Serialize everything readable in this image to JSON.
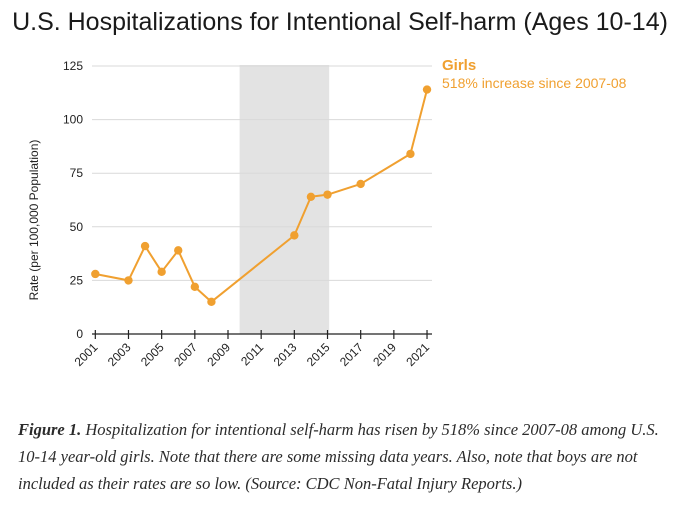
{
  "chart_data": {
    "type": "line",
    "title": "U.S. Hospitalizations for Intentional Self-harm (Ages 10-14)",
    "ylabel": "Rate (per 100,000 Population)",
    "xlabel": "",
    "xlim": [
      2000.8,
      2021.3
    ],
    "ylim": [
      0,
      125
    ],
    "y_ticks": [
      "0",
      "25",
      "50",
      "75",
      "100",
      "125"
    ],
    "x_tick_years": [
      2001,
      2003,
      2005,
      2007,
      2009,
      2011,
      2013,
      2015,
      2017,
      2019,
      2021
    ],
    "x_tick_labels": [
      "2001",
      "2003",
      "2005",
      "2007",
      "2009",
      "2011",
      "2013",
      "2015",
      "2017",
      "2019",
      "2021"
    ],
    "shaded_region": [
      2009.7,
      2015.1
    ],
    "grid": "horizontal",
    "series": [
      {
        "name": "Girls",
        "color": "#F0A030",
        "annotation": "518% increase since 2007-08",
        "x": [
          2001,
          2003,
          2004,
          2005,
          2006,
          2007,
          2008,
          2013,
          2014,
          2015,
          2017,
          2020,
          2021
        ],
        "y": [
          28,
          25,
          41,
          29,
          39,
          22,
          15,
          46,
          64,
          65,
          70,
          84,
          114
        ]
      }
    ]
  },
  "colors": {
    "line": "#F0A030",
    "shade": "#E3E3E3",
    "grid": "#D9D9D9",
    "axis": "#222222"
  },
  "caption": {
    "lead": "Figure 1.",
    "text": "Hospitalization for intentional self-harm has risen by 518% since 2007-08 among U.S. 10-14 year-old girls. Note that there are some missing data years. Also, note that boys are not included as their rates are so low. (Source: CDC Non-Fatal Injury Reports.)"
  }
}
